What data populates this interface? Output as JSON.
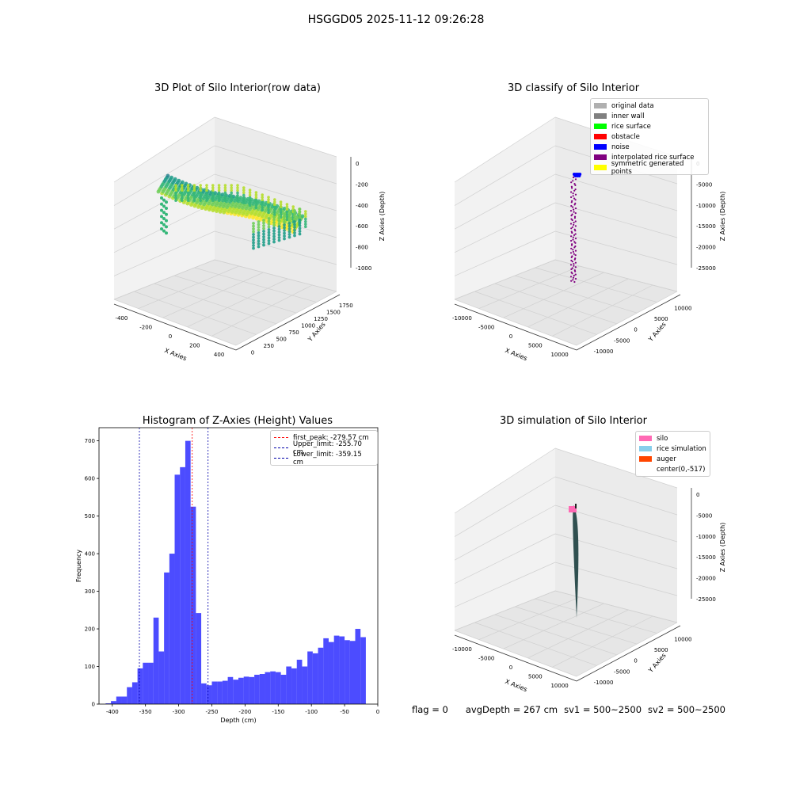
{
  "figure": {
    "suptitle": "HSGGD05 2025-11-12 09:26:28"
  },
  "panels": {
    "p1": {
      "title": "3D Plot of Silo Interior(row data)",
      "xlabel": "X Axies",
      "ylabel": "Y Axies",
      "zlabel": "Z Axies (Depth)",
      "xticks": [
        "-400",
        "-200",
        "0",
        "200",
        "400"
      ],
      "yticks": [
        "0",
        "250",
        "500",
        "750",
        "1000",
        "1250",
        "1500",
        "1750"
      ],
      "zticks": [
        "0",
        "-200",
        "-400",
        "-600",
        "-800",
        "-1000"
      ]
    },
    "p2": {
      "title": "3D classify of Silo Interior",
      "xlabel": "X Axies",
      "ylabel": "Y Axies",
      "zlabel": "Z Axies (Depth)",
      "xticks": [
        "-10000",
        "-5000",
        "0",
        "5000",
        "10000"
      ],
      "yticks": [
        "-10000",
        "-5000",
        "0",
        "5000",
        "10000"
      ],
      "zticks": [
        "0",
        "-5000",
        "-10000",
        "-15000",
        "-20000",
        "-25000"
      ],
      "legend": [
        {
          "label": "original data",
          "color": "#b0b0b0"
        },
        {
          "label": "inner wall",
          "color": "#808080"
        },
        {
          "label": "rice surface",
          "color": "#00ff00"
        },
        {
          "label": "obstacle",
          "color": "#ff0000"
        },
        {
          "label": "noise",
          "color": "#0000ff"
        },
        {
          "label": "interpolated rice surface",
          "color": "#800080"
        },
        {
          "label": "symmetric generated points",
          "color": "#ffff00"
        }
      ]
    },
    "p4": {
      "title": "3D simulation of Silo Interior",
      "xlabel": "X Axies",
      "ylabel": "Y Axies",
      "zlabel": "Z Axies (Depth)",
      "xticks": [
        "-10000",
        "-5000",
        "0",
        "5000",
        "10000"
      ],
      "yticks": [
        "-10000",
        "-5000",
        "0",
        "5000",
        "10000"
      ],
      "zticks": [
        "0",
        "-5000",
        "-10000",
        "-15000",
        "-20000",
        "-25000"
      ],
      "legend": [
        {
          "label": "silo",
          "color": "#ff69b4"
        },
        {
          "label": "rice simulation",
          "color": "#87ceeb"
        },
        {
          "label": "auger",
          "color": "#ff4500"
        },
        {
          "label": "center(0,-517)",
          "color": ""
        }
      ]
    }
  },
  "chart_data": {
    "type": "bar",
    "title": "Histogram of Z-Axies (Height) Values",
    "xlabel": "Depth (cm)",
    "ylabel": "Frequency",
    "xlim": [
      -420,
      0
    ],
    "ylim": [
      0,
      735
    ],
    "xticks": [
      -400,
      -350,
      -300,
      -250,
      -200,
      -150,
      -100,
      -50,
      0
    ],
    "yticks": [
      0,
      100,
      200,
      300,
      400,
      500,
      600,
      700
    ],
    "bar_color": "#0000ff",
    "bins_start": -410.0,
    "bin_width": 8.0,
    "values": [
      2,
      8,
      20,
      20,
      45,
      58,
      95,
      110,
      110,
      230,
      140,
      350,
      400,
      610,
      630,
      700,
      525,
      242,
      55,
      50,
      60,
      60,
      62,
      72,
      65,
      70,
      73,
      72,
      78,
      80,
      85,
      87,
      85,
      78,
      100,
      95,
      118,
      100,
      140,
      135,
      150,
      175,
      165,
      182,
      180,
      170,
      168,
      200,
      178
    ],
    "vlines": [
      {
        "label": "first_peak: -279.57 cm",
        "x": -279.57,
        "color": "#ff0000"
      },
      {
        "label": "Upper_limit: -255.70 cm",
        "x": -255.7,
        "color": "#0000aa"
      },
      {
        "label": "Lower_limit: -359.15 cm",
        "x": -359.15,
        "color": "#0000aa"
      }
    ]
  },
  "status": {
    "flag": "flag = 0",
    "avg": "avgDepth = 267 cm",
    "sv1": "sv1 = 500~2500",
    "sv2": "sv2 = 500~2500"
  }
}
